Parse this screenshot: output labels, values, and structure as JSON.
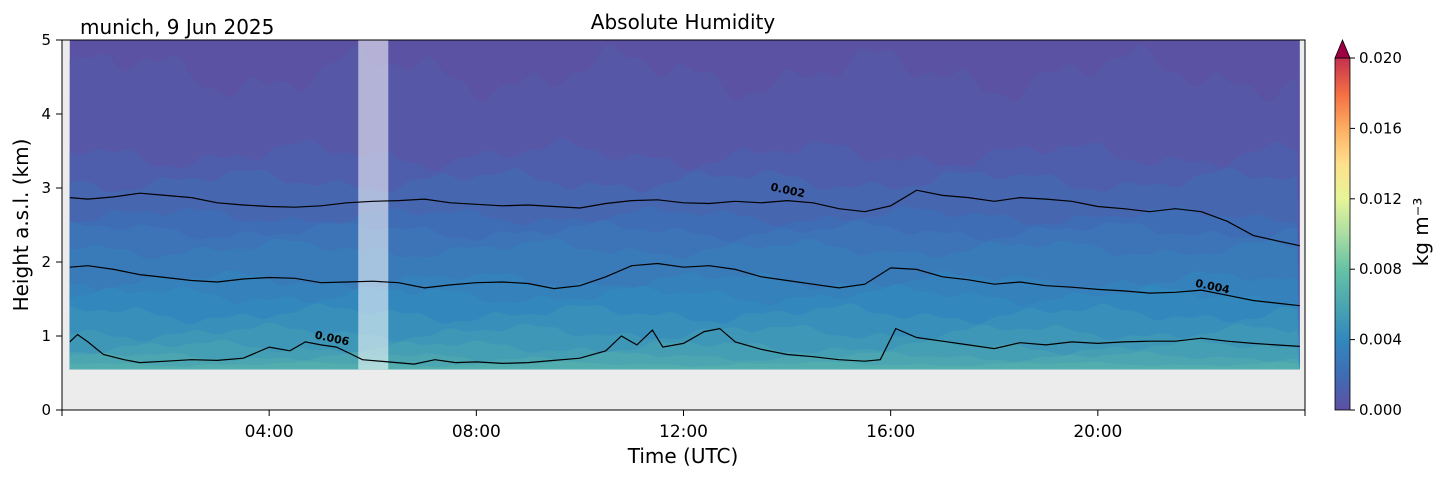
{
  "chart_data": {
    "type": "heatmap",
    "title": "Absolute Humidity",
    "subtitle": "munich, 9 Jun 2025",
    "xlabel": "Time (UTC)",
    "ylabel": "Height a.s.l. (km)",
    "xlim": [
      0,
      24
    ],
    "ylim": [
      0,
      5
    ],
    "x_ticks": [
      4,
      8,
      12,
      16,
      20
    ],
    "x_tick_labels": [
      "04:00",
      "08:00",
      "12:00",
      "16:00",
      "20:00"
    ],
    "y_ticks": [
      0,
      1,
      2,
      3,
      4,
      5
    ],
    "y_tick_labels": [
      "0",
      "1",
      "2",
      "3",
      "4",
      "5"
    ],
    "data_bottom_km": 0.55,
    "gap_hours": [
      5.72,
      6.3
    ],
    "colorbar": {
      "label": "kg m⁻³",
      "range": [
        0.0,
        0.02
      ],
      "ticks": [
        "0.000",
        "0.004",
        "0.008",
        "0.012",
        "0.016",
        "0.020"
      ],
      "tick_values": [
        0.0,
        0.004,
        0.008,
        0.012,
        0.016,
        0.02
      ],
      "extend": "max",
      "colormap": "Spectral_r"
    },
    "contours": [
      {
        "level": "0.002",
        "label_at": [
          14.0,
          2.92
        ],
        "points": [
          [
            0.15,
            2.87
          ],
          [
            0.5,
            2.85
          ],
          [
            1.0,
            2.88
          ],
          [
            1.5,
            2.93
          ],
          [
            2.0,
            2.9
          ],
          [
            2.5,
            2.87
          ],
          [
            3.0,
            2.8
          ],
          [
            3.5,
            2.77
          ],
          [
            4.0,
            2.75
          ],
          [
            4.5,
            2.74
          ],
          [
            5.0,
            2.76
          ],
          [
            5.5,
            2.8
          ],
          [
            6.0,
            2.82
          ],
          [
            6.5,
            2.83
          ],
          [
            7.0,
            2.85
          ],
          [
            7.5,
            2.8
          ],
          [
            8.0,
            2.78
          ],
          [
            8.5,
            2.76
          ],
          [
            9.0,
            2.77
          ],
          [
            9.5,
            2.75
          ],
          [
            10.0,
            2.73
          ],
          [
            10.5,
            2.79
          ],
          [
            11.0,
            2.83
          ],
          [
            11.5,
            2.84
          ],
          [
            12.0,
            2.8
          ],
          [
            12.5,
            2.79
          ],
          [
            13.0,
            2.82
          ],
          [
            13.5,
            2.8
          ],
          [
            14.0,
            2.83
          ],
          [
            14.5,
            2.8
          ],
          [
            15.0,
            2.72
          ],
          [
            15.5,
            2.68
          ],
          [
            16.0,
            2.76
          ],
          [
            16.5,
            2.97
          ],
          [
            17.0,
            2.9
          ],
          [
            17.5,
            2.87
          ],
          [
            18.0,
            2.82
          ],
          [
            18.5,
            2.87
          ],
          [
            19.0,
            2.85
          ],
          [
            19.5,
            2.82
          ],
          [
            20.0,
            2.75
          ],
          [
            20.5,
            2.72
          ],
          [
            21.0,
            2.68
          ],
          [
            21.5,
            2.72
          ],
          [
            22.0,
            2.68
          ],
          [
            22.5,
            2.55
          ],
          [
            23.0,
            2.36
          ],
          [
            23.5,
            2.28
          ],
          [
            23.9,
            2.22
          ]
        ]
      },
      {
        "level": "0.004",
        "label_at": [
          22.2,
          1.62
        ],
        "points": [
          [
            0.15,
            1.93
          ],
          [
            0.5,
            1.95
          ],
          [
            1.0,
            1.9
          ],
          [
            1.5,
            1.83
          ],
          [
            2.0,
            1.79
          ],
          [
            2.5,
            1.75
          ],
          [
            3.0,
            1.73
          ],
          [
            3.5,
            1.77
          ],
          [
            4.0,
            1.79
          ],
          [
            4.5,
            1.78
          ],
          [
            5.0,
            1.72
          ],
          [
            5.5,
            1.73
          ],
          [
            6.0,
            1.74
          ],
          [
            6.5,
            1.72
          ],
          [
            7.0,
            1.65
          ],
          [
            7.5,
            1.69
          ],
          [
            8.0,
            1.72
          ],
          [
            8.5,
            1.73
          ],
          [
            9.0,
            1.71
          ],
          [
            9.5,
            1.64
          ],
          [
            10.0,
            1.68
          ],
          [
            10.5,
            1.8
          ],
          [
            11.0,
            1.95
          ],
          [
            11.5,
            1.98
          ],
          [
            12.0,
            1.93
          ],
          [
            12.5,
            1.95
          ],
          [
            13.0,
            1.9
          ],
          [
            13.5,
            1.8
          ],
          [
            14.0,
            1.75
          ],
          [
            14.5,
            1.7
          ],
          [
            15.0,
            1.65
          ],
          [
            15.5,
            1.7
          ],
          [
            16.0,
            1.92
          ],
          [
            16.5,
            1.9
          ],
          [
            17.0,
            1.8
          ],
          [
            17.5,
            1.76
          ],
          [
            18.0,
            1.7
          ],
          [
            18.5,
            1.73
          ],
          [
            19.0,
            1.68
          ],
          [
            19.5,
            1.66
          ],
          [
            20.0,
            1.63
          ],
          [
            20.5,
            1.61
          ],
          [
            21.0,
            1.58
          ],
          [
            21.5,
            1.59
          ],
          [
            22.0,
            1.62
          ],
          [
            22.5,
            1.55
          ],
          [
            23.0,
            1.48
          ],
          [
            23.5,
            1.44
          ],
          [
            23.9,
            1.41
          ]
        ]
      },
      {
        "level": "0.006",
        "label_at": [
          5.2,
          0.92
        ],
        "points": [
          [
            0.15,
            0.92
          ],
          [
            0.3,
            1.02
          ],
          [
            0.5,
            0.92
          ],
          [
            0.8,
            0.75
          ],
          [
            1.2,
            0.68
          ],
          [
            1.5,
            0.64
          ],
          [
            2.0,
            0.66
          ],
          [
            2.5,
            0.68
          ],
          [
            3.0,
            0.67
          ],
          [
            3.5,
            0.7
          ],
          [
            4.0,
            0.85
          ],
          [
            4.4,
            0.8
          ],
          [
            4.7,
            0.92
          ],
          [
            5.0,
            0.88
          ],
          [
            5.3,
            0.85
          ],
          [
            5.6,
            0.75
          ],
          [
            5.8,
            0.68
          ],
          [
            6.3,
            0.65
          ],
          [
            6.8,
            0.62
          ],
          [
            7.2,
            0.68
          ],
          [
            7.6,
            0.64
          ],
          [
            8.0,
            0.65
          ],
          [
            8.5,
            0.63
          ],
          [
            9.0,
            0.64
          ],
          [
            9.5,
            0.67
          ],
          [
            10.0,
            0.7
          ],
          [
            10.5,
            0.8
          ],
          [
            10.8,
            1.0
          ],
          [
            11.1,
            0.88
          ],
          [
            11.4,
            1.08
          ],
          [
            11.6,
            0.85
          ],
          [
            12.0,
            0.9
          ],
          [
            12.4,
            1.06
          ],
          [
            12.7,
            1.1
          ],
          [
            13.0,
            0.92
          ],
          [
            13.5,
            0.82
          ],
          [
            14.0,
            0.75
          ],
          [
            14.5,
            0.72
          ],
          [
            15.0,
            0.68
          ],
          [
            15.5,
            0.66
          ],
          [
            15.8,
            0.68
          ],
          [
            16.1,
            1.1
          ],
          [
            16.5,
            0.98
          ],
          [
            17.0,
            0.93
          ],
          [
            17.5,
            0.88
          ],
          [
            18.0,
            0.83
          ],
          [
            18.5,
            0.91
          ],
          [
            19.0,
            0.88
          ],
          [
            19.5,
            0.92
          ],
          [
            20.0,
            0.9
          ],
          [
            20.5,
            0.92
          ],
          [
            21.0,
            0.93
          ],
          [
            21.5,
            0.93
          ],
          [
            22.0,
            0.97
          ],
          [
            22.5,
            0.93
          ],
          [
            23.0,
            0.9
          ],
          [
            23.9,
            0.86
          ]
        ]
      }
    ],
    "filled_levels": [
      {
        "value": 0.0005,
        "base_km": 4.55,
        "amp": 0.22
      },
      {
        "value": 0.001,
        "base_km": 3.45,
        "amp": 0.12
      },
      {
        "value": 0.0015,
        "base_km": 3.1,
        "amp": 0.1
      },
      {
        "value": 0.002,
        "base_km": 2.62,
        "amp": 0.08
      },
      {
        "value": 0.0025,
        "base_km": 2.42,
        "amp": 0.08
      },
      {
        "value": 0.003,
        "base_km": 2.18,
        "amp": 0.08
      },
      {
        "value": 0.0035,
        "base_km": 1.75,
        "amp": 0.08
      },
      {
        "value": 0.004,
        "base_km": 1.55,
        "amp": 0.08
      },
      {
        "value": 0.0045,
        "base_km": 1.3,
        "amp": 0.08
      },
      {
        "value": 0.005,
        "base_km": 1.05,
        "amp": 0.07
      },
      {
        "value": 0.0055,
        "base_km": 0.85,
        "amp": 0.06
      },
      {
        "value": 0.006,
        "base_km": 0.72,
        "amp": 0.04
      },
      {
        "value": 0.0065,
        "base_km": 0.62,
        "amp": 0.02
      }
    ],
    "colors": {
      "missing": "#ececec",
      "gap": "#ffffff",
      "contour": "#000000"
    }
  }
}
